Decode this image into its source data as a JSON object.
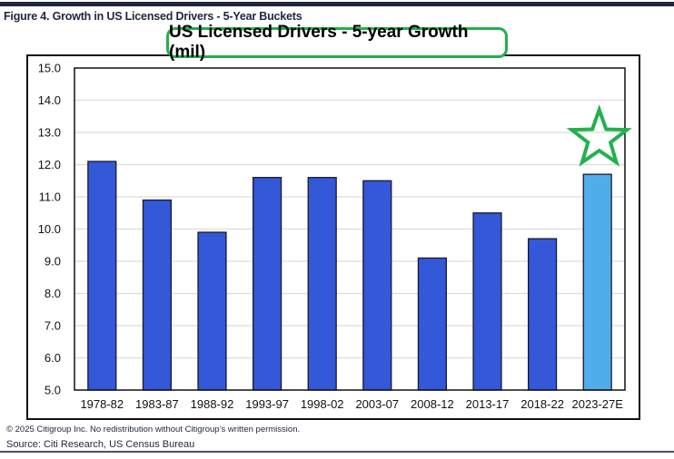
{
  "figure": {
    "title": "Figure 4. Growth in US Licensed Drivers - 5-Year Buckets",
    "copyright": "© 2025 Citigroup Inc. No redistribution without Citigroup’s written permission.",
    "source": "Source: Citi Research, US Census Bureau"
  },
  "colors": {
    "bar": "#3358D8",
    "bar_highlight": "#4FADEA",
    "highlight_outline": "#22B14C",
    "rule": "#1F2540"
  },
  "chart_data": {
    "type": "bar",
    "title": "US Licensed Drivers - 5-year Growth (mil)",
    "xlabel": "",
    "ylabel": "",
    "categories": [
      "1978-82",
      "1983-87",
      "1988-92",
      "1993-97",
      "1998-02",
      "2003-07",
      "2008-12",
      "2013-17",
      "2018-22",
      "2023-27E"
    ],
    "values": [
      12.1,
      10.9,
      9.9,
      11.6,
      11.6,
      11.5,
      9.1,
      10.5,
      9.7,
      11.7
    ],
    "highlighted": [
      "2023-27E"
    ],
    "ylim": [
      5.0,
      15.0
    ],
    "yticks": [
      "5.0",
      "6.0",
      "7.0",
      "8.0",
      "9.0",
      "10.0",
      "11.0",
      "12.0",
      "13.0",
      "14.0",
      "15.0"
    ],
    "grid": true,
    "legend": "none",
    "annotations": [
      {
        "type": "star",
        "category": "2023-27E",
        "position": "above-bar"
      }
    ]
  }
}
